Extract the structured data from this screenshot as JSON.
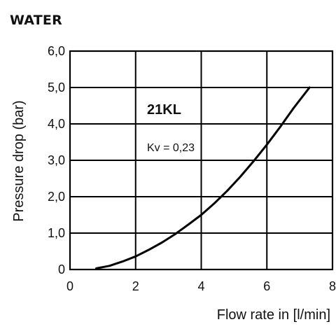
{
  "heading": "WATER",
  "chart_data": {
    "type": "line",
    "title": "",
    "xlabel": "Flow rate in [l/min]",
    "ylabel": "Pressure drop (bar)",
    "xlim": [
      0,
      8
    ],
    "ylim": [
      0,
      6
    ],
    "x_ticks": [
      "0",
      "2",
      "4",
      "6",
      "8"
    ],
    "y_ticks": [
      "0",
      "1,0",
      "2,0",
      "3,0",
      "4,0",
      "5,0",
      "6,0"
    ],
    "grid": true,
    "annotations": {
      "product": "21KL",
      "kv": "Kv = 0,23"
    },
    "series": [
      {
        "x": [
          0.8,
          1.2,
          1.6,
          2.0,
          2.4,
          2.8,
          3.2,
          3.6,
          4.0,
          4.4,
          4.8,
          5.2,
          5.6,
          6.0,
          6.4,
          6.8,
          7.3
        ],
        "y": [
          0.03,
          0.1,
          0.22,
          0.36,
          0.54,
          0.74,
          0.97,
          1.23,
          1.5,
          1.82,
          2.17,
          2.56,
          2.98,
          3.43,
          3.91,
          4.42,
          5.0
        ]
      }
    ]
  },
  "colors": {
    "line": "#000000",
    "grid": "#000000",
    "text": "#111111"
  }
}
